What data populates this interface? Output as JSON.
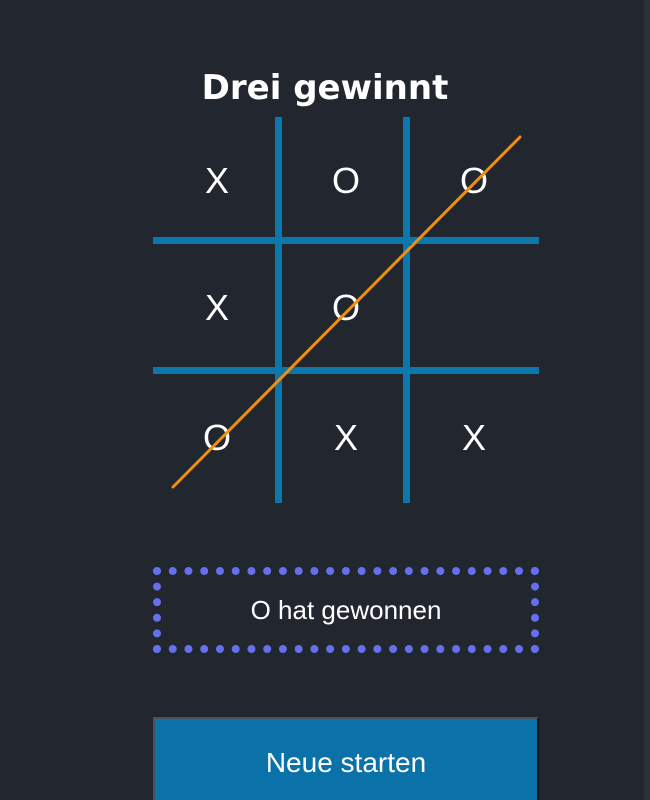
{
  "game": {
    "title": "Drei gewinnt",
    "board": [
      [
        "X",
        "O",
        "O"
      ],
      [
        "X",
        "O",
        ""
      ],
      [
        "O",
        "X",
        "X"
      ]
    ],
    "winning_line": "diagonal-bottom-left-to-top-right",
    "status_text": "O hat gewonnen",
    "restart_label": "Neue starten"
  },
  "colors": {
    "background": "#22262f",
    "grid": "#0a78ad",
    "win_line": "#f0900a",
    "status_border": "#6470ee",
    "button": "#0a72a8",
    "text": "#ffffff"
  }
}
